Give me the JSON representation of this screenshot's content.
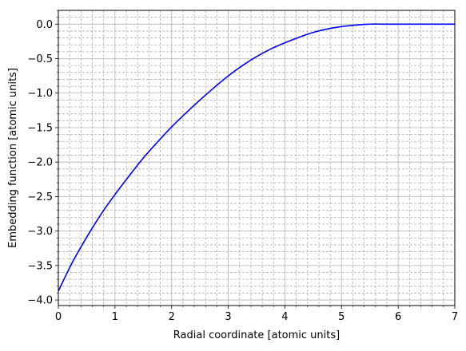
{
  "chart_data": {
    "type": "line",
    "title": "",
    "xlabel": "Radial coordinate [atomic units]",
    "ylabel": "Embedding function [atomic units]",
    "xlim": [
      0,
      7
    ],
    "ylim": [
      -4.08,
      0.2
    ],
    "x_ticks": [
      {
        "value": 0,
        "label": "0"
      },
      {
        "value": 1,
        "label": "1"
      },
      {
        "value": 2,
        "label": "2"
      },
      {
        "value": 3,
        "label": "3"
      },
      {
        "value": 4,
        "label": "4"
      },
      {
        "value": 5,
        "label": "5"
      },
      {
        "value": 6,
        "label": "6"
      },
      {
        "value": 7,
        "label": "7"
      }
    ],
    "y_ticks": [
      {
        "value": 0.0,
        "label": "0.0"
      },
      {
        "value": -0.5,
        "label": "−0.5"
      },
      {
        "value": -1.0,
        "label": "−1.0"
      },
      {
        "value": -1.5,
        "label": "−1.5"
      },
      {
        "value": -2.0,
        "label": "−2.0"
      },
      {
        "value": -2.5,
        "label": "−2.5"
      },
      {
        "value": -3.0,
        "label": "−3.0"
      },
      {
        "value": -3.5,
        "label": "−3.5"
      },
      {
        "value": -4.0,
        "label": "−4.0"
      }
    ],
    "x_minor_step": 0.2,
    "y_minor_step": 0.1,
    "grid": {
      "major": true,
      "minor": true,
      "major_color": "#b0b0b0",
      "minor_color": "#b0b0b0",
      "minor_style": "dashed"
    },
    "series": [
      {
        "color": "#0000ff",
        "x": [
          0,
          0.25,
          0.5,
          0.75,
          1.0,
          1.25,
          1.5,
          1.75,
          2.0,
          2.25,
          2.5,
          2.75,
          3.0,
          3.25,
          3.5,
          3.75,
          4.0,
          4.25,
          4.5,
          4.75,
          5.0,
          5.25,
          5.5,
          5.75,
          6.0,
          6.25,
          6.5,
          6.75,
          7.0
        ],
        "y": [
          -3.87,
          -3.45,
          -3.09,
          -2.76,
          -2.47,
          -2.2,
          -1.94,
          -1.71,
          -1.49,
          -1.29,
          -1.1,
          -0.92,
          -0.75,
          -0.6,
          -0.47,
          -0.36,
          -0.27,
          -0.19,
          -0.12,
          -0.07,
          -0.035,
          -0.013,
          0.0,
          0.0,
          0.0,
          0.0,
          0.0,
          0.0,
          0.0
        ]
      }
    ]
  }
}
